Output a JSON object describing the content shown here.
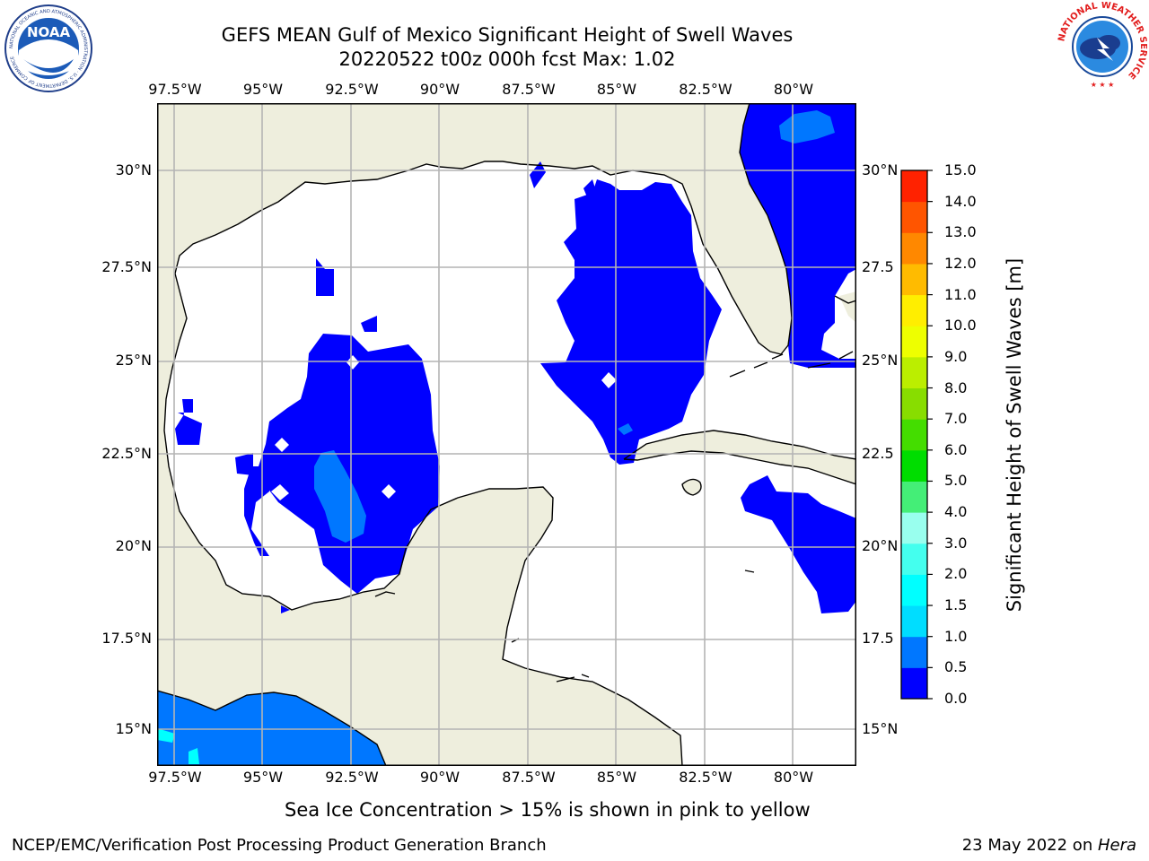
{
  "header": {
    "title_line1": "GEFS MEAN Gulf of Mexico Significant Height of Swell Waves",
    "title_line2": "20220522 t00z 000h fcst   Max: 1.02"
  },
  "logos": {
    "noaa_text": "NOAA",
    "noaa_ring_text": "NATIONAL OCEANIC AND ATMOSPHERIC ADMINISTRATION · U.S. DEPARTMENT OF COMMERCE",
    "nws_ring_text": "NATIONAL WEATHER SERVICE"
  },
  "map": {
    "lon_labels": [
      "97.5°W",
      "95°W",
      "92.5°W",
      "90°W",
      "87.5°W",
      "85°W",
      "82.5°W",
      "80°W"
    ],
    "lat_labels_left": [
      "30°N",
      "27.5°N",
      "25°N",
      "22.5°N",
      "20°N",
      "17.5°N",
      "15°N"
    ],
    "lat_labels_right": [
      "30°N",
      "27.5",
      "25°N",
      "22.5",
      "20°N",
      "17.5",
      "15°N"
    ],
    "colors": {
      "land": "#eeeedd",
      "ocean_low": "#0000ff",
      "ocean_mid": "#0077ff",
      "ocean_high": "#00ffff",
      "grid": "#b4b4b4"
    }
  },
  "colorbar": {
    "label": "Significant Height of Swell Waves [m]",
    "ticks": [
      "0.0",
      "0.5",
      "1.0",
      "1.5",
      "2.0",
      "3.0",
      "4.0",
      "5.0",
      "6.0",
      "7.0",
      "8.0",
      "9.0",
      "10.0",
      "11.0",
      "12.0",
      "13.0",
      "14.0",
      "15.0"
    ],
    "colors": [
      "#0000ff",
      "#0077ff",
      "#00ddff",
      "#00ffff",
      "#44ffee",
      "#99ffee",
      "#44ee77",
      "#00dd00",
      "#44dd00",
      "#88dd00",
      "#bbee00",
      "#eeff00",
      "#ffee00",
      "#ffbb00",
      "#ff8800",
      "#ff5500",
      "#ff2200"
    ]
  },
  "note": "Sea Ice Concentration > 15% is shown in pink to yellow",
  "footer": {
    "left": "NCEP/EMC/Verification Post Processing Product Generation Branch",
    "date": "23 May 2022 on ",
    "machine": "Hera"
  }
}
